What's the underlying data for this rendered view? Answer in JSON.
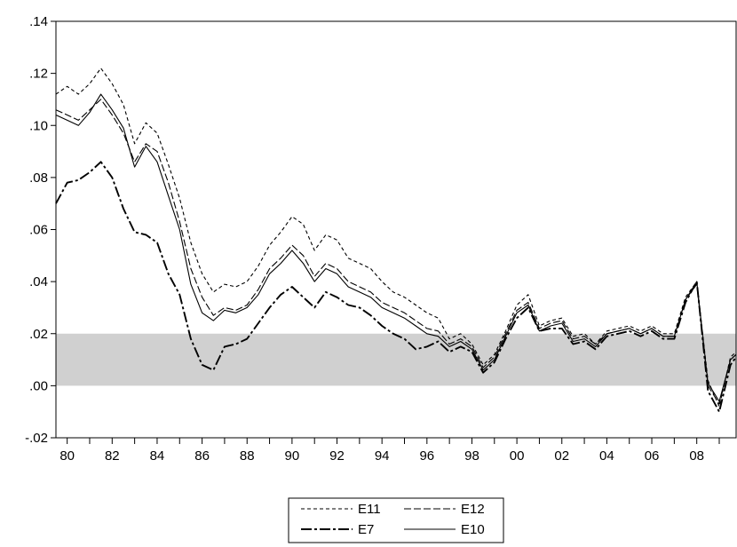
{
  "chart_data": {
    "type": "line",
    "title": "",
    "xlabel": "",
    "ylabel": "",
    "xlim": [
      1979.5,
      2009.75
    ],
    "ylim": [
      -0.02,
      0.14
    ],
    "grid": false,
    "legend_placement": "bottom-center",
    "shaded_band": {
      "y_from": 0.0,
      "y_to": 0.02,
      "color": "#d0d0d0"
    },
    "x_ticks": [
      {
        "value": 1980,
        "label": "80"
      },
      {
        "value": 1982,
        "label": "82"
      },
      {
        "value": 1984,
        "label": "84"
      },
      {
        "value": 1986,
        "label": "86"
      },
      {
        "value": 1988,
        "label": "88"
      },
      {
        "value": 1990,
        "label": "90"
      },
      {
        "value": 1992,
        "label": "92"
      },
      {
        "value": 1994,
        "label": "94"
      },
      {
        "value": 1996,
        "label": "96"
      },
      {
        "value": 1998,
        "label": "98"
      },
      {
        "value": 2000,
        "label": "00"
      },
      {
        "value": 2002,
        "label": "02"
      },
      {
        "value": 2004,
        "label": "04"
      },
      {
        "value": 2006,
        "label": "06"
      },
      {
        "value": 2008,
        "label": "08"
      }
    ],
    "y_ticks": [
      {
        "value": -0.02,
        "label": "-.02"
      },
      {
        "value": 0.0,
        "label": ".00"
      },
      {
        "value": 0.02,
        "label": ".02"
      },
      {
        "value": 0.04,
        "label": ".04"
      },
      {
        "value": 0.06,
        "label": ".06"
      },
      {
        "value": 0.08,
        "label": ".08"
      },
      {
        "value": 0.1,
        "label": ".10"
      },
      {
        "value": 0.12,
        "label": ".12"
      },
      {
        "value": 0.14,
        "label": ".14"
      }
    ],
    "x": [
      1979.5,
      1980,
      1980.5,
      1981,
      1981.5,
      1982,
      1982.5,
      1983,
      1983.5,
      1984,
      1984.5,
      1985,
      1985.5,
      1986,
      1986.5,
      1987,
      1987.5,
      1988,
      1988.5,
      1989,
      1989.5,
      1990,
      1990.5,
      1991,
      1991.5,
      1992,
      1992.5,
      1993,
      1993.5,
      1994,
      1994.5,
      1995,
      1995.5,
      1996,
      1996.5,
      1997,
      1997.5,
      1998,
      1998.5,
      1999,
      1999.5,
      2000,
      2000.5,
      2001,
      2001.5,
      2002,
      2002.5,
      2003,
      2003.5,
      2004,
      2004.5,
      2005,
      2005.5,
      2006,
      2006.5,
      2007,
      2007.5,
      2008,
      2008.5,
      2009,
      2009.5,
      2009.75
    ],
    "series": [
      {
        "name": "E11",
        "dash": "4,3",
        "width": 1.1,
        "values": [
          0.112,
          0.115,
          0.112,
          0.116,
          0.122,
          0.116,
          0.108,
          0.093,
          0.101,
          0.097,
          0.085,
          0.072,
          0.055,
          0.043,
          0.036,
          0.039,
          0.038,
          0.04,
          0.046,
          0.054,
          0.059,
          0.065,
          0.062,
          0.052,
          0.058,
          0.056,
          0.049,
          0.047,
          0.045,
          0.04,
          0.036,
          0.034,
          0.031,
          0.028,
          0.026,
          0.018,
          0.02,
          0.016,
          0.008,
          0.012,
          0.021,
          0.031,
          0.035,
          0.023,
          0.025,
          0.026,
          0.019,
          0.02,
          0.016,
          0.021,
          0.022,
          0.023,
          0.021,
          0.023,
          0.02,
          0.02,
          0.034,
          0.04,
          0.002,
          -0.008,
          0.011,
          0.013
        ]
      },
      {
        "name": "E12",
        "dash": "8,3",
        "width": 1.1,
        "values": [
          0.106,
          0.104,
          0.102,
          0.106,
          0.11,
          0.104,
          0.097,
          0.086,
          0.093,
          0.09,
          0.078,
          0.063,
          0.045,
          0.034,
          0.027,
          0.03,
          0.029,
          0.031,
          0.037,
          0.045,
          0.049,
          0.054,
          0.05,
          0.042,
          0.047,
          0.045,
          0.04,
          0.038,
          0.036,
          0.032,
          0.03,
          0.028,
          0.025,
          0.022,
          0.021,
          0.016,
          0.018,
          0.015,
          0.007,
          0.011,
          0.02,
          0.029,
          0.032,
          0.022,
          0.024,
          0.025,
          0.018,
          0.019,
          0.016,
          0.02,
          0.021,
          0.022,
          0.02,
          0.022,
          0.019,
          0.019,
          0.033,
          0.039,
          0.0,
          -0.007,
          0.01,
          0.012
        ]
      },
      {
        "name": "E7",
        "dash": "12,3,3,3",
        "width": 1.9,
        "values": [
          0.07,
          0.078,
          0.079,
          0.082,
          0.086,
          0.08,
          0.068,
          0.059,
          0.058,
          0.055,
          0.043,
          0.035,
          0.018,
          0.008,
          0.006,
          0.015,
          0.016,
          0.018,
          0.024,
          0.03,
          0.035,
          0.038,
          0.034,
          0.03,
          0.036,
          0.034,
          0.031,
          0.03,
          0.027,
          0.023,
          0.02,
          0.018,
          0.014,
          0.015,
          0.017,
          0.013,
          0.015,
          0.013,
          0.005,
          0.009,
          0.018,
          0.026,
          0.03,
          0.021,
          0.022,
          0.022,
          0.016,
          0.017,
          0.014,
          0.019,
          0.02,
          0.021,
          0.019,
          0.021,
          0.018,
          0.018,
          0.032,
          0.04,
          -0.002,
          -0.01,
          0.008,
          0.011
        ]
      },
      {
        "name": "E10",
        "dash": "",
        "width": 1.1,
        "values": [
          0.104,
          0.102,
          0.1,
          0.105,
          0.112,
          0.106,
          0.099,
          0.084,
          0.092,
          0.086,
          0.073,
          0.06,
          0.039,
          0.028,
          0.025,
          0.029,
          0.028,
          0.03,
          0.035,
          0.043,
          0.047,
          0.052,
          0.047,
          0.04,
          0.045,
          0.043,
          0.038,
          0.036,
          0.034,
          0.03,
          0.028,
          0.026,
          0.023,
          0.02,
          0.019,
          0.015,
          0.017,
          0.014,
          0.006,
          0.01,
          0.019,
          0.028,
          0.031,
          0.021,
          0.023,
          0.024,
          0.017,
          0.018,
          0.015,
          0.02,
          0.021,
          0.022,
          0.02,
          0.022,
          0.019,
          0.019,
          0.033,
          0.04,
          0.001,
          -0.006,
          0.01,
          0.012
        ]
      }
    ]
  }
}
